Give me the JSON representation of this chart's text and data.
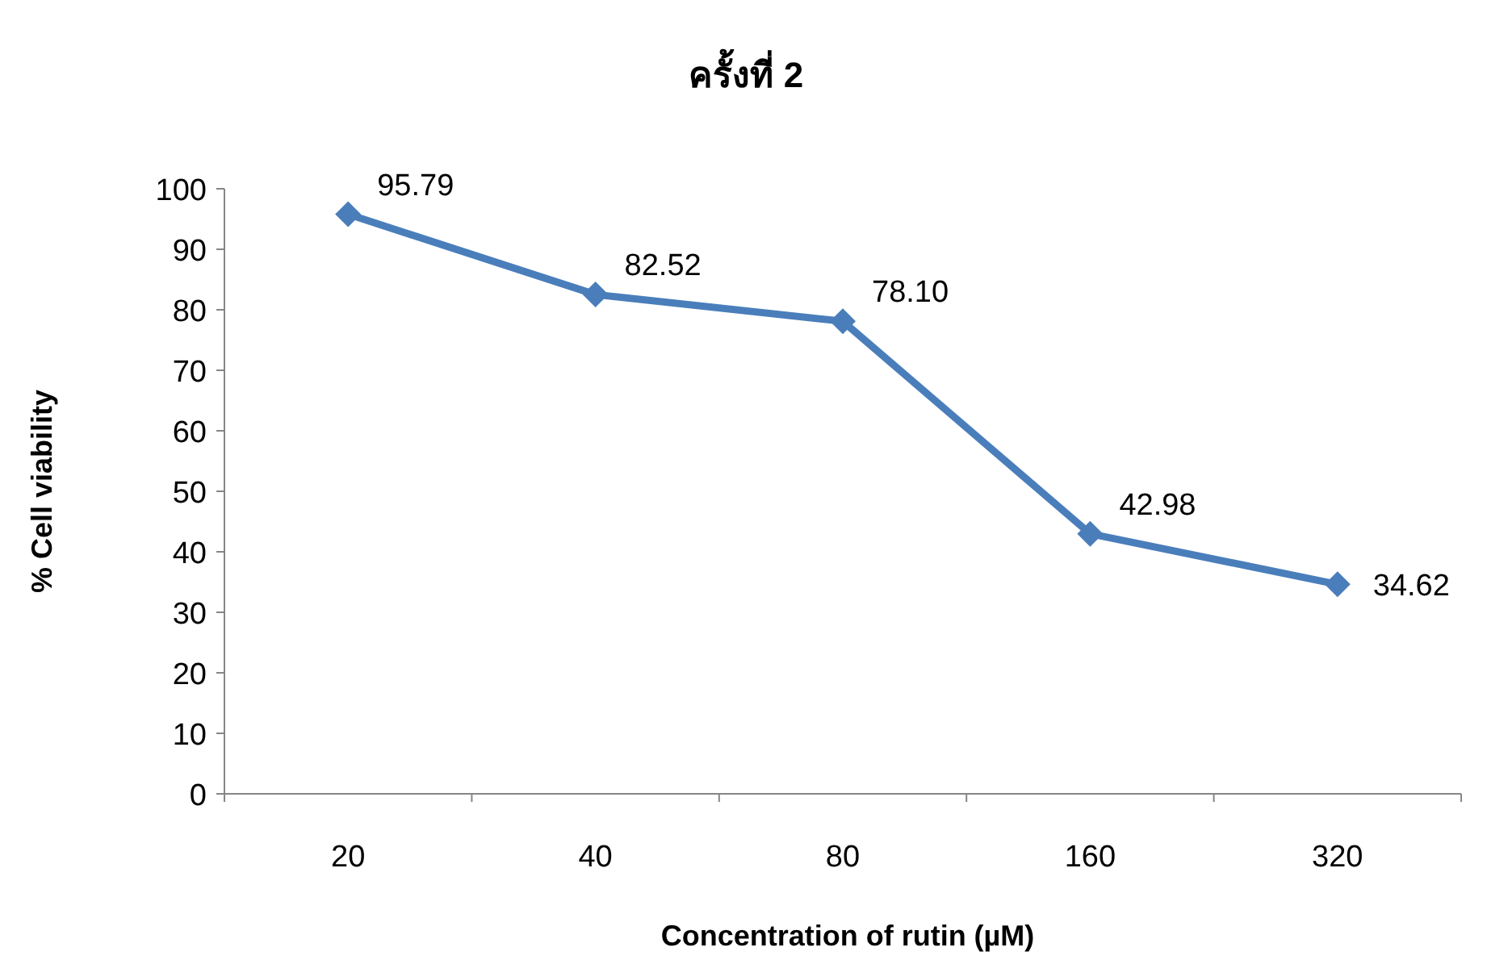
{
  "chart_data": {
    "type": "line",
    "title": "ครั้งที่ 2",
    "xlabel": "Concentration of rutin (µM)",
    "ylabel": "% Cell viability",
    "categories": [
      "20",
      "40",
      "80",
      "160",
      "320"
    ],
    "series": [
      {
        "color": "#4a7ebb",
        "values": [
          95.79,
          82.52,
          78.1,
          42.98,
          34.62
        ],
        "value_labels": [
          "95.79",
          "82.52",
          "78.10",
          "42.98",
          "34.62"
        ]
      }
    ],
    "ylim": [
      0,
      100
    ],
    "yticks": [
      0,
      10,
      20,
      30,
      40,
      50,
      60,
      70,
      80,
      90,
      100
    ],
    "grid": false,
    "marker": "diamond",
    "line_style": "solid"
  }
}
